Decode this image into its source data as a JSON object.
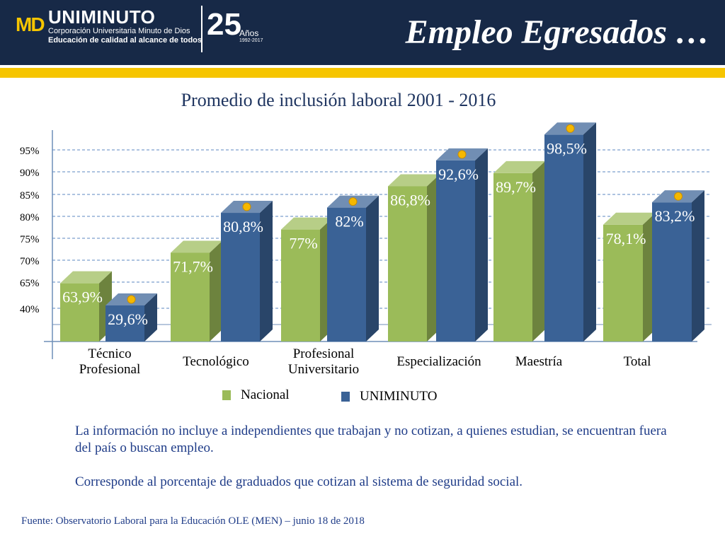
{
  "header": {
    "logo_mark": "MD",
    "logo_name": "UNIMINUTO",
    "logo_subtitle": "Corporación Universitaria Minuto de Dios",
    "logo_tagline": "Educación de calidad al alcance de todos",
    "anniversary_number": "25",
    "anniversary_word": "Años",
    "anniversary_years": "1992-2017",
    "slide_title": "Empleo Egresados …"
  },
  "colors": {
    "header_bg": "#172947",
    "accent_gold": "#f6c500",
    "nacional": "#9bbb59",
    "uniminuto": "#3a6296",
    "text_blue": "#1f3c88"
  },
  "chart_data": {
    "type": "bar",
    "title": "Promedio de inclusión laboral 2001 - 2016",
    "categories": [
      "Técnico\nProfesional",
      "Tecnológico",
      "Profesional\nUniversitario",
      "Especialización",
      "Maestría",
      "Total"
    ],
    "series": [
      {
        "name": "Nacional",
        "values": [
          63.9,
          71.7,
          77,
          86.8,
          89.7,
          78.1
        ],
        "labels": [
          "63,9%",
          "71,7%",
          "77%",
          "86,8%",
          "89,7%",
          "78,1%"
        ]
      },
      {
        "name": "UNIMINUTO",
        "values": [
          29.6,
          80.8,
          82,
          92.6,
          98.5,
          83.2
        ],
        "labels": [
          "29,6%",
          "80,8%",
          "82%",
          "92,6%",
          "98,5%",
          "83,2%"
        ]
      }
    ],
    "y_ticks": [
      "95%",
      "90%",
      "85%",
      "80%",
      "75%",
      "70%",
      "65%",
      "40%"
    ],
    "grid": "dashed",
    "legend_position": "bottom"
  },
  "notes": [
    "La información no incluye a independientes que trabajan y no cotizan, a quienes estudian, se encuentran fuera del país o buscan empleo.",
    "Corresponde al porcentaje de graduados que cotizan al sistema de seguridad social."
  ],
  "source": "Fuente: Observatorio Laboral para la Educación OLE (MEN) – junio 18 de 2018"
}
